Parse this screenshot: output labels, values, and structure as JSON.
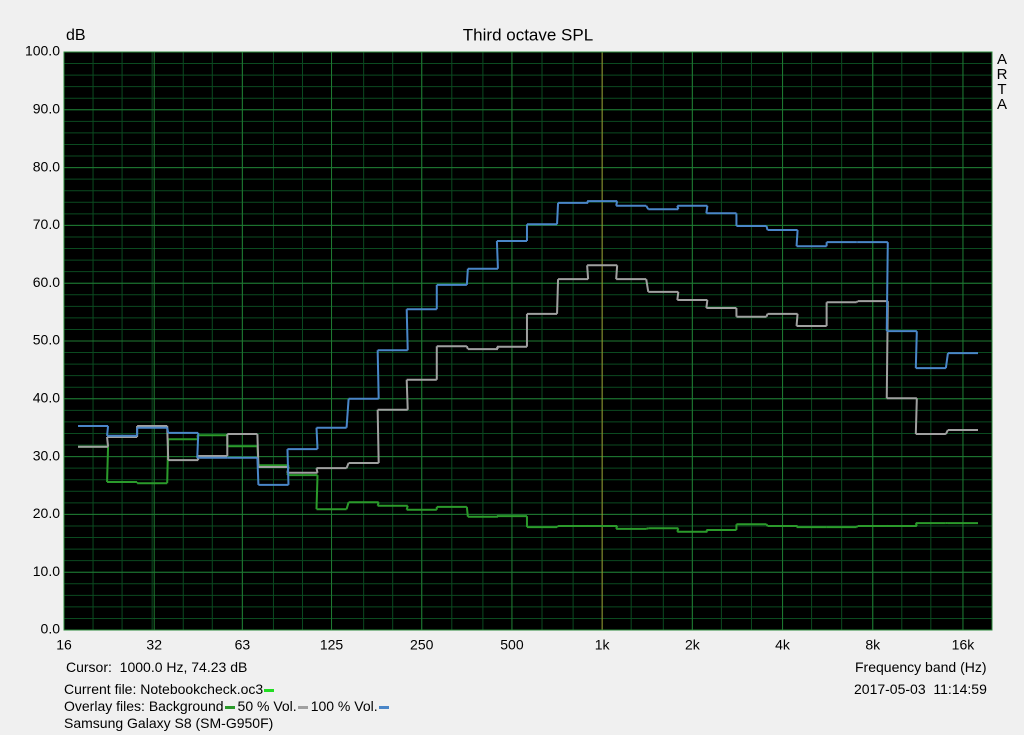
{
  "chart_data": {
    "type": "step",
    "title": "Third octave SPL",
    "y_label": "dB",
    "x_label": "Frequency band (Hz)",
    "brand": "ARTA",
    "log_x": true,
    "grid": true,
    "grid_minor_y": 2,
    "xlim": [
      16,
      20000
    ],
    "xticks": [
      16,
      32,
      63,
      125,
      250,
      500,
      {
        "value": 1000,
        "label": "1k"
      },
      {
        "value": 2000,
        "label": "2k"
      },
      {
        "value": 4000,
        "label": "4k"
      },
      {
        "value": 8000,
        "label": "8k"
      },
      {
        "value": 16000,
        "label": "16k"
      }
    ],
    "ylim": [
      0,
      100
    ],
    "yticks": [
      {
        "value": 0,
        "label": "0.0"
      },
      {
        "value": 10,
        "label": "10.0"
      },
      {
        "value": 20,
        "label": "20.0"
      },
      {
        "value": 30,
        "label": "30.0"
      },
      {
        "value": 40,
        "label": "40.0"
      },
      {
        "value": 50,
        "label": "50.0"
      },
      {
        "value": 60,
        "label": "60.0"
      },
      {
        "value": 70,
        "label": "70.0"
      },
      {
        "value": 80,
        "label": "80.0"
      },
      {
        "value": 90,
        "label": "90.0"
      },
      {
        "value": 100,
        "label": "100.0"
      }
    ],
    "x": [
      20,
      25,
      31.5,
      40,
      50,
      63,
      80,
      100,
      125,
      160,
      200,
      250,
      315,
      400,
      500,
      630,
      800,
      1000,
      1250,
      1600,
      2000,
      2500,
      3150,
      4000,
      5000,
      6300,
      8000,
      10000,
      12500,
      16000
    ],
    "series": [
      {
        "name": "Background",
        "color": "#2b9a2b",
        "values": [
          31.7,
          25.6,
          25.4,
          33.0,
          33.7,
          31.8,
          28.5,
          26.8,
          20.9,
          22.1,
          21.5,
          20.8,
          21.3,
          19.6,
          19.7,
          17.8,
          18.0,
          18.0,
          17.5,
          17.6,
          17.0,
          17.3,
          18.3,
          18.0,
          17.8,
          17.8,
          18.0,
          18.0,
          18.5,
          18.5
        ]
      },
      {
        "name": "50 % Vol.",
        "color": "#a0a0a0",
        "values": [
          31.7,
          33.4,
          35.3,
          29.4,
          30.1,
          33.9,
          28.2,
          27.2,
          28.0,
          28.9,
          38.1,
          43.3,
          49.1,
          48.6,
          49.0,
          54.7,
          60.7,
          63.1,
          60.7,
          58.5,
          57.1,
          55.7,
          54.2,
          54.7,
          52.6,
          56.7,
          56.9,
          40.1,
          33.9,
          34.6
        ]
      },
      {
        "name": "100 % Vol.",
        "color": "#4a86c8",
        "values": [
          35.3,
          33.6,
          35.0,
          34.1,
          29.8,
          29.8,
          25.1,
          31.3,
          35.0,
          40.0,
          48.4,
          55.5,
          59.7,
          62.5,
          67.3,
          70.2,
          73.9,
          74.2,
          73.4,
          72.8,
          73.4,
          72.1,
          69.9,
          69.2,
          66.4,
          67.1,
          67.1,
          51.7,
          45.3,
          47.9
        ]
      }
    ]
  },
  "footer": {
    "cursor": "Cursor:  1000.0 Hz, 74.23 dB",
    "current_file": "Current file: Notebookcheck.oc3",
    "overlay_label": "Overlay files:",
    "device": "Samsung Galaxy S8 (SM-G950F)",
    "timestamp": "2017-05-03  11:14:59"
  }
}
